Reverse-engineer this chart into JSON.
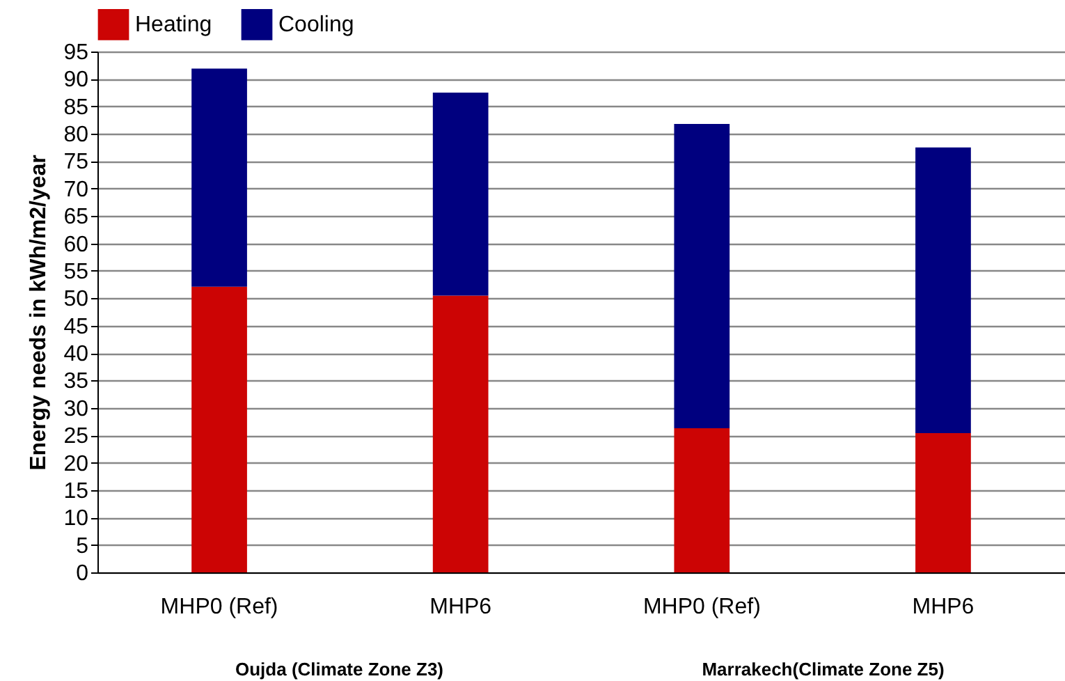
{
  "chart_data": {
    "type": "bar",
    "stacked": true,
    "ylabel": "Energy needs in kWh/m2/year",
    "categories": [
      "MHP0 (Ref)",
      "MHP6",
      "MHP0 (Ref)",
      "MHP6"
    ],
    "series": [
      {
        "name": "Heating",
        "color": "#cc0404",
        "values": [
          52.1,
          50.5,
          26.3,
          25.4
        ]
      },
      {
        "name": "Cooling",
        "color": "#00007f",
        "values": [
          39.8,
          37.0,
          55.5,
          52.1
        ]
      }
    ],
    "ylim": [
      0,
      95
    ],
    "yticks": [
      0,
      5,
      10,
      15,
      20,
      25,
      30,
      35,
      40,
      45,
      50,
      55,
      60,
      65,
      70,
      75,
      80,
      85,
      90,
      95
    ],
    "grid": "y",
    "legend": "top left",
    "annotations": [
      "Oujda (Climate Zone Z3)",
      "Marrakech(Climate Zone Z5)"
    ]
  }
}
